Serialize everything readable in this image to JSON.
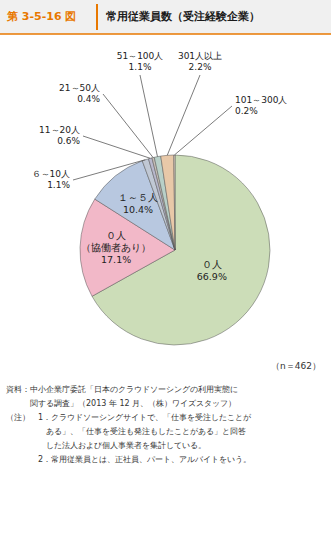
{
  "chart_data": {
    "type": "pie",
    "title": "第 3-5-16 図",
    "subtitle": "常用従業員数（受注経験企業）",
    "categories": [
      "０人",
      "０人\n（協働者あり）",
      "１～５人",
      "６～10人",
      "11～20人",
      "21～50人",
      "51～100人",
      "301人以上",
      "101～300人"
    ],
    "values": [
      66.9,
      17.1,
      10.4,
      1.1,
      0.6,
      0.4,
      1.1,
      2.2,
      0.2
    ],
    "value_labels": [
      "66.9%",
      "17.1%",
      "10.4%",
      "1.1%",
      "0.6%",
      "0.4%",
      "1.1%",
      "2.2%",
      "0.2%"
    ],
    "colors": [
      "#ccddb8",
      "#f2b8c8",
      "#b8c8e0",
      "#c0c8d4",
      "#b8b8cc",
      "#c8c0b8",
      "#b8d0c8",
      "#e8c8a8",
      "#f0ddd0"
    ],
    "data_labels": true,
    "annotations": [
      "（n＝462）",
      "資料：中小企業庁委託「日本のクラウドソーシングの利用実態に",
      "　　　関する調査」（2013 年 12 月、（株）ワイズスタッフ）",
      "（注）　1．クラウドソーシングサイトで、「仕事を受注したことが",
      "　　　　　ある」、「仕事を受注も発注もしたことがある」と回答",
      "　　　　　した法人および個人事業者を集計している。",
      "　　　　2．常用従業員とは、正社員、パート、アルバイトをいう。"
    ]
  }
}
